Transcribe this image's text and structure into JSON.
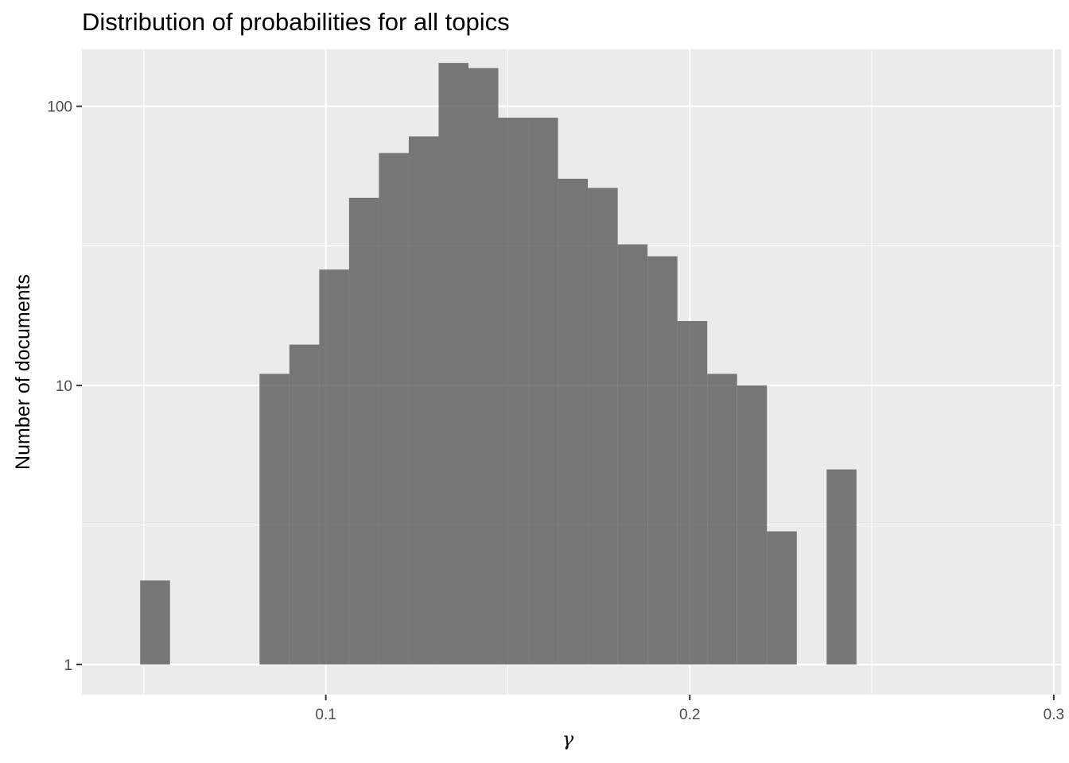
{
  "chart_data": {
    "type": "bar",
    "title": "Distribution of probabilities for all topics",
    "xlabel": "γ",
    "ylabel": "Number of documents",
    "xlim": [
      0.033,
      0.302
    ],
    "ylim": [
      0.78,
      160
    ],
    "y_scale": "log10",
    "grid": true,
    "x_ticks": [
      {
        "value": 0.1,
        "label": "0.1"
      },
      {
        "value": 0.2,
        "label": "0.2"
      },
      {
        "value": 0.3,
        "label": "0.3"
      }
    ],
    "y_ticks": [
      {
        "value": 1,
        "label": "1"
      },
      {
        "value": 10,
        "label": "10"
      },
      {
        "value": 100,
        "label": "100"
      }
    ],
    "bin_width": 0.0082,
    "bars": [
      {
        "x": 0.0531,
        "count": 2
      },
      {
        "x": 0.0859,
        "count": 11
      },
      {
        "x": 0.0941,
        "count": 14
      },
      {
        "x": 0.1023,
        "count": 26
      },
      {
        "x": 0.1105,
        "count": 47
      },
      {
        "x": 0.1187,
        "count": 68
      },
      {
        "x": 0.1269,
        "count": 78
      },
      {
        "x": 0.1351,
        "count": 143
      },
      {
        "x": 0.1433,
        "count": 137
      },
      {
        "x": 0.1515,
        "count": 91
      },
      {
        "x": 0.1597,
        "count": 91
      },
      {
        "x": 0.1679,
        "count": 55
      },
      {
        "x": 0.1761,
        "count": 51
      },
      {
        "x": 0.1843,
        "count": 32
      },
      {
        "x": 0.1925,
        "count": 29
      },
      {
        "x": 0.2007,
        "count": 17
      },
      {
        "x": 0.2089,
        "count": 11
      },
      {
        "x": 0.2171,
        "count": 10
      },
      {
        "x": 0.2253,
        "count": 3
      },
      {
        "x": 0.2417,
        "count": 5
      }
    ]
  }
}
